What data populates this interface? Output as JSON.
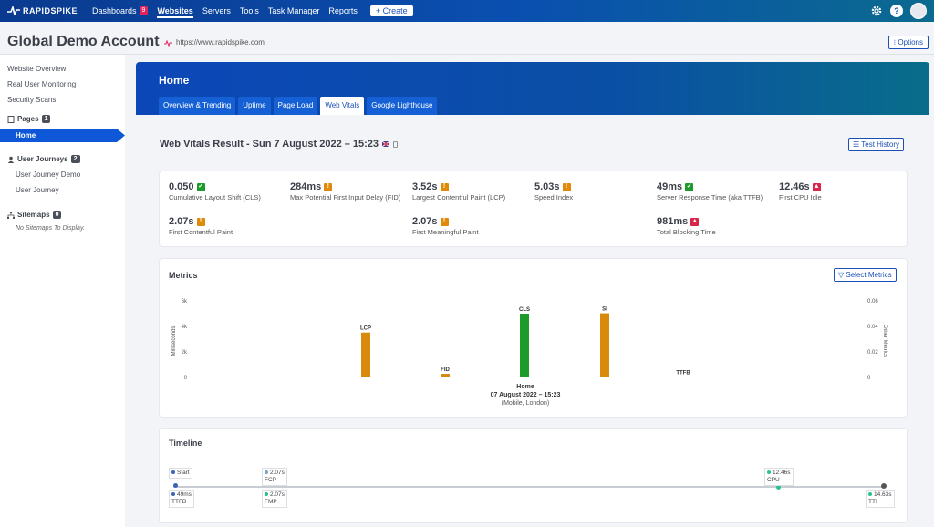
{
  "topnav": {
    "logo": "RAPIDSPIKE",
    "items": [
      {
        "label": "Dashboards",
        "badge": "9"
      },
      {
        "label": "Websites",
        "active": true
      },
      {
        "label": "Servers"
      },
      {
        "label": "Tools"
      },
      {
        "label": "Task Manager"
      },
      {
        "label": "Reports"
      }
    ],
    "create_label": "+ Create",
    "help_label": "?"
  },
  "header": {
    "account_title": "Global Demo Account",
    "site_url": "https://www.rapidspike.com",
    "options_label": "⁝ Options"
  },
  "sidebar": {
    "links": [
      "Website Overview",
      "Real User Monitoring",
      "Security Scans"
    ],
    "pages_label": "Pages",
    "pages_count": "1",
    "active_page": "Home",
    "journeys_label": "User Journeys",
    "journeys_count": "2",
    "journeys": [
      "User Journey Demo",
      "User Journey"
    ],
    "sitemaps_label": "Sitemaps",
    "sitemaps_count": "0",
    "sitemaps_empty": "No Sitemaps To Display."
  },
  "main": {
    "title": "Home",
    "tabs": [
      "Overview & Trending",
      "Uptime",
      "Page Load",
      "Web Vitals",
      "Google Lighthouse"
    ],
    "active_tab": "Web Vitals",
    "result_title": "Web Vitals Result - Sun 7 August 2022 – 15:23",
    "history_label": "☷ Test History"
  },
  "vitals": [
    {
      "value": "0.050",
      "label": "Cumulative Layout Shift (CLS)",
      "status": "good"
    },
    {
      "value": "284ms",
      "label": "Max Potential First Input Delay (FID)",
      "status": "warn"
    },
    {
      "value": "3.52s",
      "label": "Largest Contentful Paint (LCP)",
      "status": "warn"
    },
    {
      "value": "5.03s",
      "label": "Speed Index",
      "status": "warn"
    },
    {
      "value": "49ms",
      "label": "Server Response Time (aka TTFB)",
      "status": "good"
    },
    {
      "value": "12.46s",
      "label": "First CPU Idle",
      "status": "bad"
    },
    {
      "value": "2.07s",
      "label": "First Contentful Paint",
      "status": "warn"
    },
    {
      "value": "2.07s",
      "label": "First Meaningful Paint",
      "status": "warn"
    },
    {
      "value": "981ms",
      "label": "Total Blocking Time",
      "status": "bad"
    }
  ],
  "metrics": {
    "title": "Metrics",
    "select_label": "▽ Select Metrics"
  },
  "chart_data": {
    "type": "bar",
    "title": "",
    "ylabel": "Milliseconds",
    "y2label": "Other Metrics",
    "ylim": [
      0,
      6000
    ],
    "y2lim": [
      0,
      0.06
    ],
    "yticks": [
      "6k",
      "4k",
      "2k",
      "0"
    ],
    "y2ticks": [
      "0.06",
      "0.04",
      "0.02",
      "0"
    ],
    "categories": [
      "LCP",
      "FID",
      "CLS",
      "SI",
      "TTFB"
    ],
    "values": [
      3520,
      284,
      0.05,
      5030,
      49
    ],
    "axis": [
      "primary",
      "primary",
      "secondary",
      "primary",
      "primary"
    ],
    "colors": [
      "#d98a0d",
      "#d98a0d",
      "#1c9a2a",
      "#d98a0d",
      "#1c9a2a"
    ],
    "x_caption_1": "Home",
    "x_caption_2": "07 August 2022 – 15:23",
    "x_caption_3": "(Mobile, London)"
  },
  "timeline": {
    "title": "Timeline",
    "start": "Start",
    "ttfb": {
      "value": "49ms",
      "label": "TTFB"
    },
    "fcp": {
      "value": "2.07s",
      "label": "FCP"
    },
    "fmp": {
      "value": "2.07s",
      "label": "FMP"
    },
    "cpu": {
      "value": "12.46s",
      "label": "CPU"
    },
    "tti": {
      "value": "14.63s",
      "label": "TTI"
    }
  }
}
